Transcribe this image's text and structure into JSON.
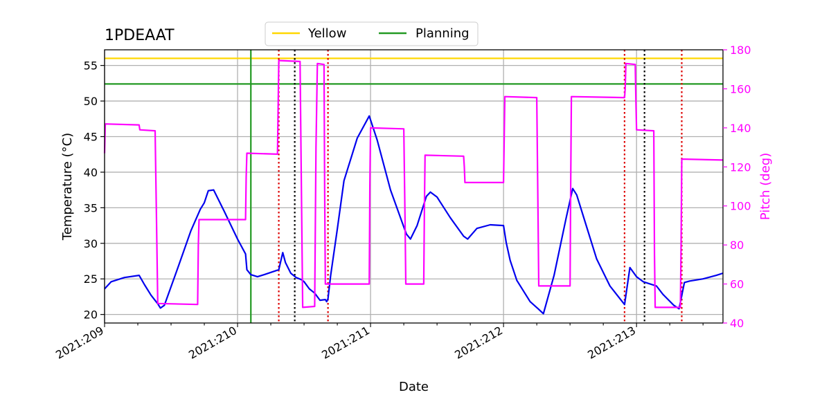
{
  "chart_data": {
    "type": "line",
    "title": "1PDEAAT",
    "xlabel": "Date",
    "ylabel": "Temperature ($^\\circ$C)",
    "ylabel_display": "Temperature (°C)",
    "y2label": "Pitch (deg)",
    "xlim": [
      209.0,
      213.65
    ],
    "ylim": [
      18.8,
      57.2
    ],
    "y2lim": [
      40,
      180
    ],
    "x_ticks": [
      209,
      210,
      211,
      212,
      213
    ],
    "x_tick_labels": [
      "2021:209",
      "2021:210",
      "2021:211",
      "2021:212",
      "2021:213"
    ],
    "y_ticks": [
      20,
      25,
      30,
      35,
      40,
      45,
      50,
      55
    ],
    "y2_ticks": [
      40,
      60,
      80,
      100,
      120,
      140,
      160,
      180
    ],
    "grid": true,
    "legend_position": "top-center",
    "colors": {
      "temperature": "#0000ee",
      "pitch": "#ff00ff",
      "yellow": "#ffd700",
      "planning": "#229922",
      "red_marker": "#dd0000",
      "black_marker": "#000000",
      "grid": "#b0b0b0"
    },
    "legend": [
      {
        "label": "Yellow",
        "color": "#ffd700"
      },
      {
        "label": "Planning",
        "color": "#229922"
      }
    ],
    "limits": {
      "yellow": 56.0,
      "planning": 52.4
    },
    "planning_time": 210.1,
    "red_markers": [
      210.31,
      210.68,
      212.91,
      213.34
    ],
    "black_markers": [
      210.43,
      213.06
    ],
    "series": [
      {
        "name": "Temperature",
        "axis": "left",
        "x": [
          209.0,
          209.05,
          209.15,
          209.26,
          209.3,
          209.35,
          209.4,
          209.42,
          209.45,
          209.55,
          209.65,
          209.72,
          209.75,
          209.78,
          209.82,
          209.9,
          210.0,
          210.06,
          210.07,
          210.1,
          210.15,
          210.2,
          210.31,
          210.34,
          210.36,
          210.4,
          210.44,
          210.48,
          210.5,
          210.54,
          210.58,
          210.62,
          210.66,
          210.67,
          210.68,
          210.7,
          210.75,
          210.8,
          210.9,
          210.99,
          211.05,
          211.15,
          211.25,
          211.27,
          211.3,
          211.35,
          211.42,
          211.45,
          211.5,
          211.6,
          211.7,
          211.73,
          211.8,
          211.9,
          212.0,
          212.02,
          212.05,
          212.1,
          212.2,
          212.26,
          212.3,
          212.38,
          212.47,
          212.52,
          212.55,
          212.62,
          212.7,
          212.8,
          212.91,
          212.95,
          213.0,
          213.05,
          213.1,
          213.15,
          213.2,
          213.28,
          213.32,
          213.36,
          213.4,
          213.5,
          213.6,
          213.65
        ],
        "y": [
          23.6,
          24.6,
          25.2,
          25.5,
          24.2,
          22.7,
          21.5,
          20.9,
          21.3,
          26.5,
          31.8,
          34.8,
          35.7,
          37.4,
          37.5,
          34.5,
          30.6,
          28.5,
          26.3,
          25.6,
          25.3,
          25.6,
          26.3,
          28.7,
          27.3,
          25.8,
          25.2,
          24.9,
          24.6,
          23.6,
          23.0,
          22.0,
          22.1,
          21.8,
          22.2,
          25.5,
          32.0,
          38.8,
          44.8,
          47.9,
          44.5,
          37.5,
          32.3,
          31.3,
          30.6,
          32.5,
          36.6,
          37.2,
          36.5,
          33.6,
          31.0,
          30.6,
          32.1,
          32.6,
          32.5,
          30.1,
          27.6,
          24.8,
          21.8,
          20.8,
          20.1,
          25.5,
          33.5,
          37.7,
          36.8,
          32.6,
          27.8,
          24.0,
          21.4,
          26.6,
          25.3,
          24.6,
          24.3,
          24.0,
          22.8,
          21.3,
          20.8,
          24.5,
          24.7,
          25.0,
          25.5,
          25.8
        ]
      },
      {
        "name": "Pitch",
        "axis": "right",
        "x": [
          209.0,
          209.005,
          209.26,
          209.265,
          209.38,
          209.39,
          209.4,
          209.7,
          209.705,
          209.71,
          210.06,
          210.065,
          210.07,
          210.3,
          210.305,
          210.31,
          210.47,
          210.48,
          210.49,
          210.58,
          210.59,
          210.6,
          210.65,
          210.655,
          210.66,
          210.99,
          210.995,
          211.0,
          211.25,
          211.26,
          211.265,
          211.4,
          211.405,
          211.41,
          211.7,
          211.705,
          211.71,
          212.0,
          212.005,
          212.01,
          212.25,
          212.26,
          212.265,
          212.5,
          212.505,
          212.51,
          212.91,
          212.915,
          212.92,
          212.99,
          212.995,
          213.0,
          213.13,
          213.135,
          213.14,
          213.33,
          213.335,
          213.34,
          213.65
        ],
        "y": [
          127,
          142,
          141.5,
          139,
          138.5,
          95,
          50,
          49.5,
          80,
          93,
          93,
          115,
          127,
          126.5,
          150,
          174.5,
          174,
          110,
          48,
          48.5,
          130,
          173,
          172.5,
          110,
          60,
          60,
          110,
          140,
          139.5,
          90,
          60,
          60,
          100,
          126,
          125.5,
          120,
          112,
          112,
          135,
          156,
          155.5,
          90,
          59,
          59,
          110,
          156,
          155.5,
          160,
          173,
          172.5,
          155,
          139,
          138.5,
          75,
          48,
          48,
          80,
          124,
          123.5
        ]
      }
    ]
  }
}
